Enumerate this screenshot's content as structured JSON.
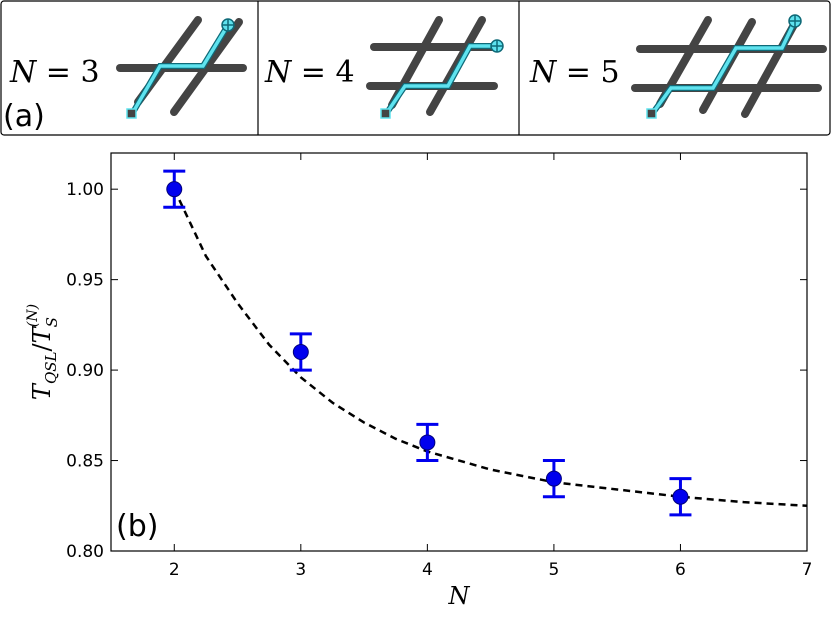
{
  "panel_a": {
    "label": "(a)",
    "subpanels": [
      {
        "n_label": "N",
        "eq": " = ",
        "n_value": "3",
        "grid_lines": 3
      },
      {
        "n_label": "N",
        "eq": " = ",
        "n_value": "4",
        "grid_lines": 4
      },
      {
        "n_label": "N",
        "eq": " = ",
        "n_value": "5",
        "grid_lines": 5
      }
    ],
    "colors": {
      "bar": "#444444",
      "path": "#5fe3ef",
      "path_edge": "#0f6a78"
    },
    "icons": {
      "start": "square-marker-icon",
      "end": "crosshair-circle-icon"
    }
  },
  "panel_b": {
    "label": "(b)",
    "xlabel": "N",
    "ylabel": {
      "main": "T",
      "sub1": "QSL",
      "slash": "/",
      "main2": "T",
      "sub2": "S",
      "sup2": "(N)"
    }
  },
  "chart_data": {
    "type": "scatter",
    "xlim": [
      1.5,
      7
    ],
    "ylim": [
      0.8,
      1.02
    ],
    "xticks": [
      "2",
      "3",
      "4",
      "5",
      "6",
      "7"
    ],
    "yticks": [
      "0.80",
      "0.85",
      "0.90",
      "0.95",
      "1.00"
    ],
    "grid": false,
    "series": [
      {
        "type": "scatter-errorbar",
        "color": "#0000ee",
        "x": [
          2,
          3,
          4,
          5,
          6
        ],
        "y": [
          1.0,
          0.91,
          0.86,
          0.84,
          0.83
        ],
        "yerr": [
          0.01,
          0.01,
          0.01,
          0.01,
          0.01
        ]
      },
      {
        "type": "line",
        "style": "dashed",
        "color": "#000000",
        "x": [
          2,
          2.25,
          2.5,
          2.75,
          3,
          3.25,
          3.5,
          3.75,
          4,
          4.5,
          5,
          5.5,
          6,
          6.5,
          7
        ],
        "y": [
          1.0,
          0.963,
          0.937,
          0.914,
          0.896,
          0.882,
          0.871,
          0.862,
          0.855,
          0.845,
          0.838,
          0.834,
          0.83,
          0.827,
          0.825
        ]
      }
    ]
  }
}
